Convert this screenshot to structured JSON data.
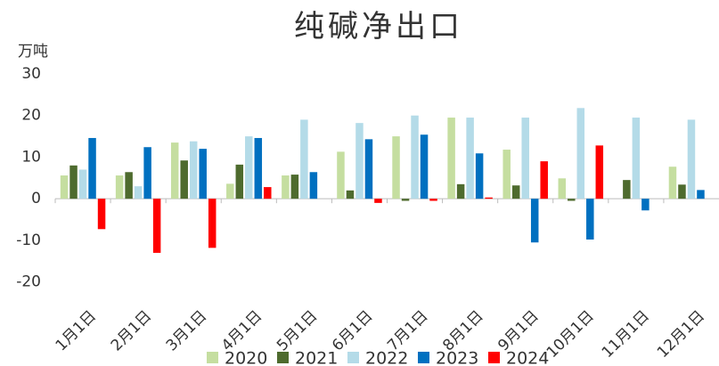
{
  "chart_data": {
    "type": "bar",
    "title": "纯碱净出口",
    "y_label": "万吨",
    "categories": [
      "1月1日",
      "2月1日",
      "3月1日",
      "4月1日",
      "5月1日",
      "6月1日",
      "7月1日",
      "8月1日",
      "9月1日",
      "10月1日",
      "11月1日",
      "12月1日"
    ],
    "series": [
      {
        "name": "2020",
        "color": "#c5dea0",
        "values": [
          5.6,
          5.6,
          13.5,
          3.6,
          5.6,
          11.3,
          15,
          19.5,
          11.8,
          4.9,
          null,
          7.7
        ]
      },
      {
        "name": "2021",
        "color": "#4e6b2e",
        "values": [
          8,
          6.4,
          9.2,
          8.2,
          5.8,
          2,
          -0.5,
          3.5,
          3.2,
          -0.5,
          4.5,
          3.4
        ]
      },
      {
        "name": "2022",
        "color": "#b4dbe8",
        "values": [
          7,
          3,
          13.8,
          15,
          19,
          18.2,
          20,
          19.5,
          19.5,
          21.8,
          19.5,
          19
        ]
      },
      {
        "name": "2023",
        "color": "#0070c0",
        "values": [
          14.6,
          12.4,
          12,
          14.6,
          6.4,
          14.3,
          15.4,
          10.9,
          -10.5,
          -9.8,
          -2.8,
          2.1
        ]
      },
      {
        "name": "2024",
        "color": "#ff0000",
        "values": [
          -7.3,
          -13,
          -11.8,
          2.8,
          null,
          -1,
          -0.5,
          0.3,
          9,
          12.8,
          null,
          null
        ]
      }
    ],
    "ylim": [
      -25,
      30
    ],
    "yticks": [
      -20,
      -10,
      0,
      10,
      20,
      30
    ],
    "grid": false,
    "legend": "bottom"
  }
}
